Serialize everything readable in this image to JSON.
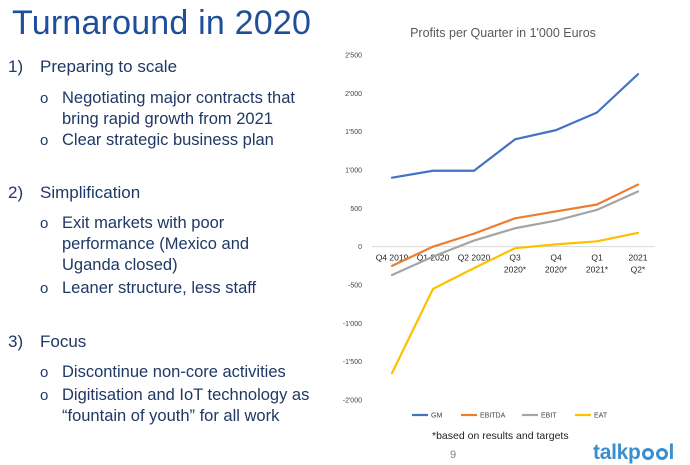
{
  "slide": {
    "title": "Turnaround in 2020",
    "sections": [
      {
        "num": "1)",
        "label": "Preparing to scale",
        "bullets": [
          "Negotiating major contracts that bring rapid growth from 2021",
          "Clear strategic business plan"
        ]
      },
      {
        "num": "2)",
        "label": "Simplification",
        "bullets": [
          "Exit markets with poor performance (Mexico and Uganda closed)",
          "Leaner structure, less staff"
        ]
      },
      {
        "num": "3)",
        "label": "Focus",
        "bullets": [
          "Discontinue non-core activities",
          "Digitisation and IoT technology as “fountain of youth” for all work"
        ]
      }
    ],
    "bullet_glyph": "o",
    "footnote": "*based on results and targets",
    "page_number": "9",
    "logo_text_pre": "talkp",
    "logo_text_post": "l"
  },
  "chart_data": {
    "type": "line",
    "title": "Profits per Quarter in 1'000 Euros",
    "categories": [
      [
        "Q4 2019"
      ],
      [
        "Q1 2020"
      ],
      [
        "Q2 2020"
      ],
      [
        "Q3",
        "2020*"
      ],
      [
        "Q4",
        "2020*"
      ],
      [
        "Q1",
        "2021*"
      ],
      [
        "2021",
        "Q2*"
      ]
    ],
    "ylim": [
      -2000,
      2500
    ],
    "yticks": [
      2500,
      2000,
      1500,
      1000,
      500,
      0,
      -500,
      -1000,
      -1500,
      -2000
    ],
    "ytick_labels": [
      "2'500",
      "2'000",
      "1'500",
      "1'000",
      "500",
      "0",
      "-500",
      "-1'000",
      "-1'500",
      "-2'000"
    ],
    "grid": false,
    "legend": "bottom",
    "series": [
      {
        "name": "GM",
        "color": "#4472c4",
        "values": [
          900,
          990,
          990,
          1400,
          1520,
          1750,
          2250
        ]
      },
      {
        "name": "EBITDA",
        "color": "#ed7d31",
        "values": [
          -250,
          0,
          170,
          370,
          460,
          550,
          810
        ]
      },
      {
        "name": "EBIT",
        "color": "#a5a5a5",
        "values": [
          -370,
          -130,
          80,
          240,
          340,
          480,
          720
        ]
      },
      {
        "name": "EAT",
        "color": "#ffc000",
        "values": [
          -1650,
          -550,
          -280,
          -20,
          30,
          70,
          180
        ]
      }
    ]
  }
}
